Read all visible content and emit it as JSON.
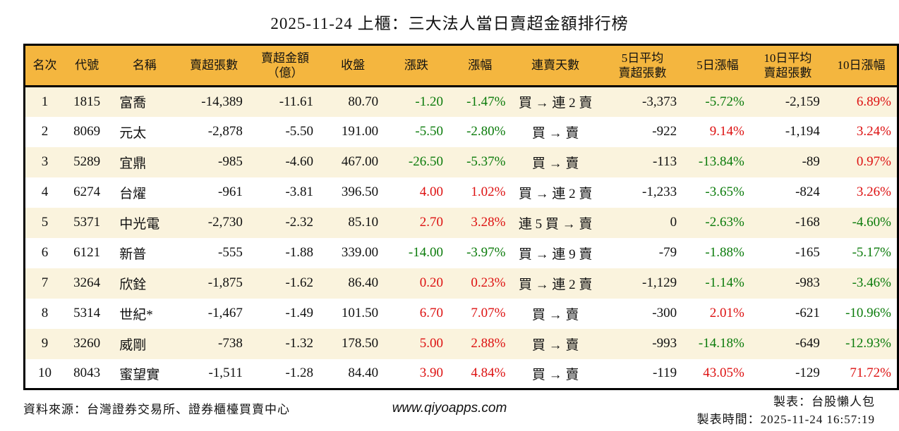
{
  "title": "2025-11-24 上櫃：三大法人當日賣超金額排行榜",
  "colors": {
    "header_bg": "#F4B63F",
    "row_stripe_bg": "#FAF3DD",
    "positive_red": "#DD1111",
    "negative_green": "#0B7B0B",
    "border": "#000000"
  },
  "table": {
    "columns": [
      {
        "key": "rank",
        "label": "名次"
      },
      {
        "key": "code",
        "label": "代號"
      },
      {
        "key": "name",
        "label": "名稱"
      },
      {
        "key": "net_sell_lots",
        "label": "賣超張數"
      },
      {
        "key": "net_sell_amount",
        "label": "賣超金額\n（億）"
      },
      {
        "key": "close",
        "label": "收盤"
      },
      {
        "key": "change",
        "label": "漲跌"
      },
      {
        "key": "change_pct",
        "label": "漲幅"
      },
      {
        "key": "sell_streak",
        "label": "連賣天數"
      },
      {
        "key": "avg5_lots",
        "label": "5日平均\n賣超張數"
      },
      {
        "key": "pct5",
        "label": "5日漲幅"
      },
      {
        "key": "avg10_lots",
        "label": "10日平均\n賣超張數"
      },
      {
        "key": "pct10",
        "label": "10日漲幅"
      }
    ],
    "rows": [
      {
        "rank": "1",
        "code": "1815",
        "name": "富喬",
        "net_sell_lots": "-14,389",
        "net_sell_amount": "-11.61",
        "close": "80.70",
        "change": {
          "v": "-1.20",
          "c": "green"
        },
        "change_pct": {
          "v": "-1.47%",
          "c": "green"
        },
        "sell_streak": "買 → 連 2 賣",
        "avg5_lots": "-3,373",
        "pct5": {
          "v": "-5.72%",
          "c": "green"
        },
        "avg10_lots": "-2,159",
        "pct10": {
          "v": "6.89%",
          "c": "red"
        }
      },
      {
        "rank": "2",
        "code": "8069",
        "name": "元太",
        "net_sell_lots": "-2,878",
        "net_sell_amount": "-5.50",
        "close": "191.00",
        "change": {
          "v": "-5.50",
          "c": "green"
        },
        "change_pct": {
          "v": "-2.80%",
          "c": "green"
        },
        "sell_streak": "買 → 賣",
        "avg5_lots": "-922",
        "pct5": {
          "v": "9.14%",
          "c": "red"
        },
        "avg10_lots": "-1,194",
        "pct10": {
          "v": "3.24%",
          "c": "red"
        }
      },
      {
        "rank": "3",
        "code": "5289",
        "name": "宜鼎",
        "net_sell_lots": "-985",
        "net_sell_amount": "-4.60",
        "close": "467.00",
        "change": {
          "v": "-26.50",
          "c": "green"
        },
        "change_pct": {
          "v": "-5.37%",
          "c": "green"
        },
        "sell_streak": "買 → 賣",
        "avg5_lots": "-113",
        "pct5": {
          "v": "-13.84%",
          "c": "green"
        },
        "avg10_lots": "-89",
        "pct10": {
          "v": "0.97%",
          "c": "red"
        }
      },
      {
        "rank": "4",
        "code": "6274",
        "name": "台燿",
        "net_sell_lots": "-961",
        "net_sell_amount": "-3.81",
        "close": "396.50",
        "change": {
          "v": "4.00",
          "c": "red"
        },
        "change_pct": {
          "v": "1.02%",
          "c": "red"
        },
        "sell_streak": "買 → 連 2 賣",
        "avg5_lots": "-1,233",
        "pct5": {
          "v": "-3.65%",
          "c": "green"
        },
        "avg10_lots": "-824",
        "pct10": {
          "v": "3.26%",
          "c": "red"
        }
      },
      {
        "rank": "5",
        "code": "5371",
        "name": "中光電",
        "net_sell_lots": "-2,730",
        "net_sell_amount": "-2.32",
        "close": "85.10",
        "change": {
          "v": "2.70",
          "c": "red"
        },
        "change_pct": {
          "v": "3.28%",
          "c": "red"
        },
        "sell_streak": "連 5 買 → 賣",
        "avg5_lots": "0",
        "pct5": {
          "v": "-2.63%",
          "c": "green"
        },
        "avg10_lots": "-168",
        "pct10": {
          "v": "-4.60%",
          "c": "green"
        }
      },
      {
        "rank": "6",
        "code": "6121",
        "name": "新普",
        "net_sell_lots": "-555",
        "net_sell_amount": "-1.88",
        "close": "339.00",
        "change": {
          "v": "-14.00",
          "c": "green"
        },
        "change_pct": {
          "v": "-3.97%",
          "c": "green"
        },
        "sell_streak": "買 → 連 9 賣",
        "avg5_lots": "-79",
        "pct5": {
          "v": "-1.88%",
          "c": "green"
        },
        "avg10_lots": "-165",
        "pct10": {
          "v": "-5.17%",
          "c": "green"
        }
      },
      {
        "rank": "7",
        "code": "3264",
        "name": "欣銓",
        "net_sell_lots": "-1,875",
        "net_sell_amount": "-1.62",
        "close": "86.40",
        "change": {
          "v": "0.20",
          "c": "red"
        },
        "change_pct": {
          "v": "0.23%",
          "c": "red"
        },
        "sell_streak": "買 → 連 2 賣",
        "avg5_lots": "-1,129",
        "pct5": {
          "v": "-1.14%",
          "c": "green"
        },
        "avg10_lots": "-983",
        "pct10": {
          "v": "-3.46%",
          "c": "green"
        }
      },
      {
        "rank": "8",
        "code": "5314",
        "name": "世紀*",
        "net_sell_lots": "-1,467",
        "net_sell_amount": "-1.49",
        "close": "101.50",
        "change": {
          "v": "6.70",
          "c": "red"
        },
        "change_pct": {
          "v": "7.07%",
          "c": "red"
        },
        "sell_streak": "買 → 賣",
        "avg5_lots": "-300",
        "pct5": {
          "v": "2.01%",
          "c": "red"
        },
        "avg10_lots": "-621",
        "pct10": {
          "v": "-10.96%",
          "c": "green"
        }
      },
      {
        "rank": "9",
        "code": "3260",
        "name": "威剛",
        "net_sell_lots": "-738",
        "net_sell_amount": "-1.32",
        "close": "178.50",
        "change": {
          "v": "5.00",
          "c": "red"
        },
        "change_pct": {
          "v": "2.88%",
          "c": "red"
        },
        "sell_streak": "買 → 賣",
        "avg5_lots": "-993",
        "pct5": {
          "v": "-14.18%",
          "c": "green"
        },
        "avg10_lots": "-649",
        "pct10": {
          "v": "-12.93%",
          "c": "green"
        }
      },
      {
        "rank": "10",
        "code": "8043",
        "name": "蜜望實",
        "net_sell_lots": "-1,511",
        "net_sell_amount": "-1.28",
        "close": "84.40",
        "change": {
          "v": "3.90",
          "c": "red"
        },
        "change_pct": {
          "v": "4.84%",
          "c": "red"
        },
        "sell_streak": "買 → 賣",
        "avg5_lots": "-119",
        "pct5": {
          "v": "43.05%",
          "c": "red"
        },
        "avg10_lots": "-129",
        "pct10": {
          "v": "71.72%",
          "c": "red"
        }
      }
    ]
  },
  "footer": {
    "source": "資料來源：台灣證券交易所、證券櫃檯買賣中心",
    "website": "www.qiyoapps.com",
    "author": "製表：台股懶人包",
    "generated_at": "製表時間：2025-11-24 16:57:19"
  },
  "chart_data": {
    "type": "table",
    "title": "2025-11-24 上櫃：三大法人當日賣超金額排行榜",
    "columns": [
      "名次",
      "代號",
      "名稱",
      "賣超張數",
      "賣超金額（億）",
      "收盤",
      "漲跌",
      "漲幅",
      "連賣天數",
      "5日平均賣超張數",
      "5日漲幅",
      "10日平均賣超張數",
      "10日漲幅"
    ],
    "rows": [
      [
        "1",
        "1815",
        "富喬",
        "-14,389",
        "-11.61",
        "80.70",
        "-1.20",
        "-1.47%",
        "買 → 連 2 賣",
        "-3,373",
        "-5.72%",
        "-2,159",
        "6.89%"
      ],
      [
        "2",
        "8069",
        "元太",
        "-2,878",
        "-5.50",
        "191.00",
        "-5.50",
        "-2.80%",
        "買 → 賣",
        "-922",
        "9.14%",
        "-1,194",
        "3.24%"
      ],
      [
        "3",
        "5289",
        "宜鼎",
        "-985",
        "-4.60",
        "467.00",
        "-26.50",
        "-5.37%",
        "買 → 賣",
        "-113",
        "-13.84%",
        "-89",
        "0.97%"
      ],
      [
        "4",
        "6274",
        "台燿",
        "-961",
        "-3.81",
        "396.50",
        "4.00",
        "1.02%",
        "買 → 連 2 賣",
        "-1,233",
        "-3.65%",
        "-824",
        "3.26%"
      ],
      [
        "5",
        "5371",
        "中光電",
        "-2,730",
        "-2.32",
        "85.10",
        "2.70",
        "3.28%",
        "連 5 買 → 賣",
        "0",
        "-2.63%",
        "-168",
        "-4.60%"
      ],
      [
        "6",
        "6121",
        "新普",
        "-555",
        "-1.88",
        "339.00",
        "-14.00",
        "-3.97%",
        "買 → 連 9 賣",
        "-79",
        "-1.88%",
        "-165",
        "-5.17%"
      ],
      [
        "7",
        "3264",
        "欣銓",
        "-1,875",
        "-1.62",
        "86.40",
        "0.20",
        "0.23%",
        "買 → 連 2 賣",
        "-1,129",
        "-1.14%",
        "-983",
        "-3.46%"
      ],
      [
        "8",
        "5314",
        "世紀*",
        "-1,467",
        "-1.49",
        "101.50",
        "6.70",
        "7.07%",
        "買 → 賣",
        "-300",
        "2.01%",
        "-621",
        "-10.96%"
      ],
      [
        "9",
        "3260",
        "威剛",
        "-738",
        "-1.32",
        "178.50",
        "5.00",
        "2.88%",
        "買 → 賣",
        "-993",
        "-14.18%",
        "-649",
        "-12.93%"
      ],
      [
        "10",
        "8043",
        "蜜望實",
        "-1,511",
        "-1.28",
        "84.40",
        "3.90",
        "4.84%",
        "買 → 賣",
        "-119",
        "43.05%",
        "-129",
        "71.72%"
      ]
    ]
  }
}
